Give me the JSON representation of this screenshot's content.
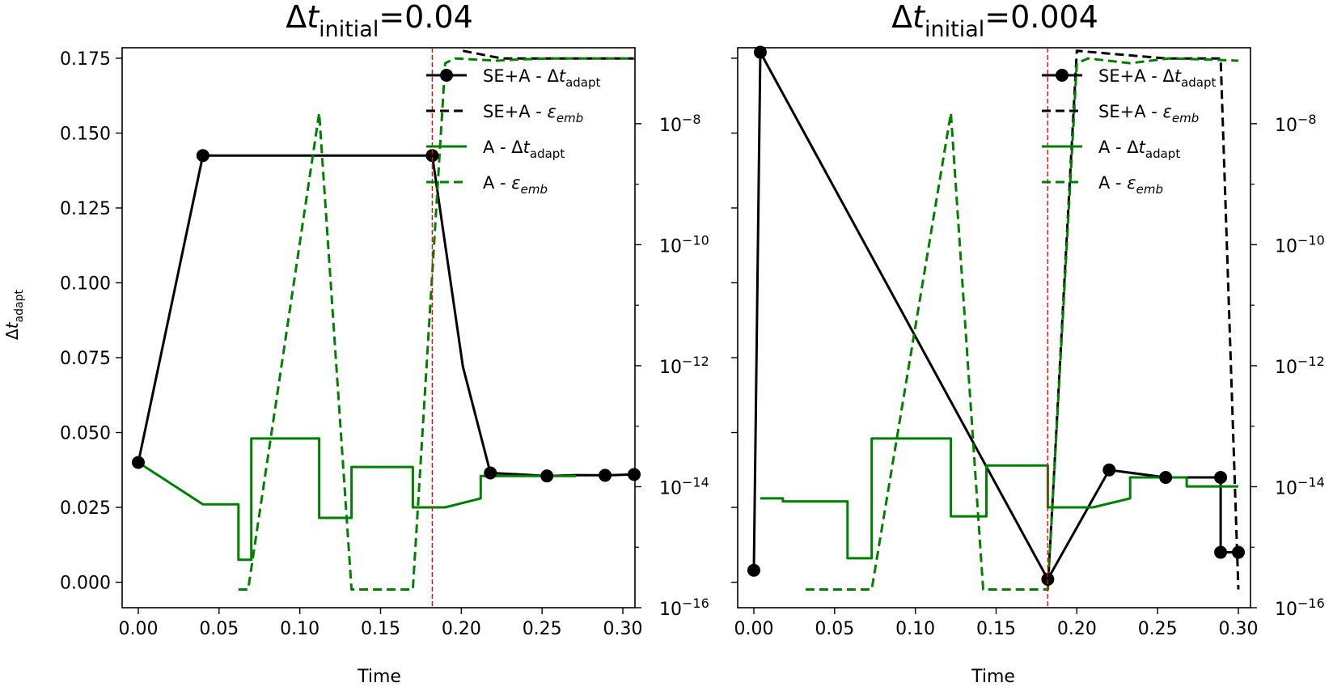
{
  "figure": {
    "ylabel_left": "Δt_adapt"
  },
  "chart_data": [
    {
      "type": "line",
      "title": "Δt_initial=0.04",
      "xlabel": "Time",
      "ylabel": "Δt_adapt",
      "xlim": [
        -0.01,
        0.3075
      ],
      "xticks": [
        "0.00",
        "0.05",
        "0.10",
        "0.15",
        "0.20",
        "0.25",
        "0.30"
      ],
      "ylim": [
        -0.0085,
        0.1785
      ],
      "yticks": [
        "0.000",
        "0.025",
        "0.050",
        "0.075",
        "0.100",
        "0.125",
        "0.150",
        "0.175"
      ],
      "y2_scale": "log",
      "y2lim": [
        1e-16,
        1.8e-07
      ],
      "y2ticks": [
        "10^-16",
        "10^-14",
        "10^-12",
        "10^-10",
        "10^-8"
      ],
      "vline_x": 0.182,
      "legend": {
        "placement": "top-right",
        "entries": [
          "SE+A - Δt_adapt",
          "SE+A - ε_emb",
          "A - Δt_adapt",
          "A - ε_emb"
        ]
      },
      "series": [
        {
          "axis": "left",
          "style": "solid-markers",
          "color": "#000000",
          "x": [
            0.0,
            0.04,
            0.182,
            0.201,
            0.218,
            0.236,
            0.253,
            0.271,
            0.289,
            0.307
          ],
          "y": [
            0.04,
            0.1425,
            0.1425,
            0.072,
            0.0365,
            0.036,
            0.0355,
            0.0358,
            0.0357,
            0.036
          ],
          "markers": [
            true,
            true,
            true,
            false,
            true,
            false,
            true,
            false,
            true,
            true
          ]
        },
        {
          "axis": "right",
          "style": "dashed",
          "color": "#000000",
          "x": [
            0.201,
            0.225,
            0.258,
            0.307
          ],
          "y": [
            1.6e-07,
            1.2e-07,
            1.2e-07,
            1.2e-07
          ]
        },
        {
          "axis": "left",
          "style": "steps",
          "color": "#008000",
          "x": [
            0.0,
            0.04,
            0.062,
            0.062,
            0.07,
            0.07,
            0.112,
            0.112,
            0.132,
            0.132,
            0.17,
            0.17,
            0.19,
            0.212,
            0.212,
            0.271
          ],
          "y": [
            0.04,
            0.026,
            0.026,
            0.0075,
            0.0075,
            0.048,
            0.048,
            0.0215,
            0.0215,
            0.0385,
            0.0385,
            0.025,
            0.025,
            0.028,
            0.0355,
            0.0355
          ]
        },
        {
          "axis": "right",
          "style": "dashed",
          "color": "#008000",
          "x": [
            0.062,
            0.068,
            0.112,
            0.132,
            0.134,
            0.17,
            0.19,
            0.196,
            0.222,
            0.235,
            0.257,
            0.28,
            0.307
          ],
          "y": [
            2e-16,
            2e-16,
            1.5e-08,
            2e-16,
            2e-16,
            2e-16,
            1e-07,
            1.2e-07,
            1.1e-07,
            1.15e-07,
            1.2e-07,
            1.2e-07,
            1.2e-07
          ]
        }
      ]
    },
    {
      "type": "line",
      "title": "Δt_initial=0.004",
      "xlabel": "Time",
      "ylabel": "",
      "xlim": [
        -0.01,
        0.3075
      ],
      "xticks": [
        "0.00",
        "0.05",
        "0.10",
        "0.15",
        "0.20",
        "0.25",
        "0.30"
      ],
      "ylim": [
        -0.0085,
        0.1785
      ],
      "yticks": [],
      "y2_scale": "log",
      "y2lim": [
        1e-16,
        1.8e-07
      ],
      "y2ticks": [
        "10^-16",
        "10^-14",
        "10^-12",
        "10^-10",
        "10^-8"
      ],
      "vline_x": 0.182,
      "legend": {
        "placement": "top-right",
        "entries": [
          "SE+A - Δt_adapt",
          "SE+A - ε_emb",
          "A - Δt_adapt",
          "A - ε_emb"
        ]
      },
      "series": [
        {
          "axis": "left",
          "style": "solid-markers",
          "color": "#000000",
          "x": [
            0.0,
            0.004,
            0.182,
            0.22,
            0.255,
            0.289,
            0.289,
            0.3
          ],
          "y": [
            0.004,
            0.177,
            0.001,
            0.0375,
            0.035,
            0.035,
            0.01,
            0.01
          ],
          "markers": [
            true,
            true,
            true,
            true,
            true,
            true,
            true,
            true
          ]
        },
        {
          "axis": "right",
          "style": "dashed",
          "color": "#000000",
          "x": [
            0.182,
            0.2,
            0.255,
            0.289,
            0.3
          ],
          "y": [
            2e-16,
            1.6e-07,
            1.2e-07,
            1.2e-07,
            2e-16
          ]
        },
        {
          "axis": "left",
          "style": "steps",
          "color": "#008000",
          "x": [
            0.004,
            0.018,
            0.018,
            0.058,
            0.058,
            0.073,
            0.073,
            0.122,
            0.122,
            0.144,
            0.144,
            0.182,
            0.182,
            0.21,
            0.233,
            0.233,
            0.268,
            0.268,
            0.3
          ],
          "y": [
            0.028,
            0.028,
            0.027,
            0.027,
            0.008,
            0.008,
            0.048,
            0.048,
            0.022,
            0.022,
            0.039,
            0.039,
            0.025,
            0.025,
            0.028,
            0.035,
            0.035,
            0.032,
            0.032
          ]
        },
        {
          "axis": "right",
          "style": "dashed",
          "color": "#008000",
          "x": [
            0.032,
            0.073,
            0.122,
            0.142,
            0.144,
            0.182,
            0.2,
            0.207,
            0.233,
            0.257,
            0.28,
            0.3
          ],
          "y": [
            2e-16,
            2e-16,
            1.5e-08,
            2e-16,
            2e-16,
            2e-16,
            1e-07,
            1.2e-07,
            1e-07,
            1.2e-07,
            1.15e-07,
            1.1e-07
          ]
        }
      ]
    }
  ]
}
